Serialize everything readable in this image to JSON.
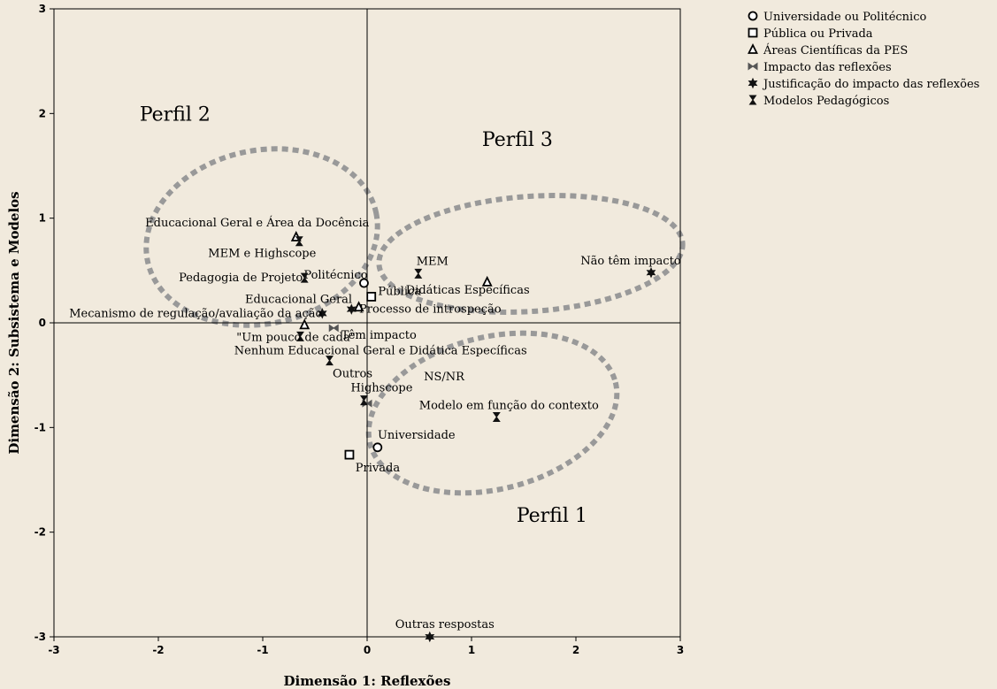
{
  "chart_data": {
    "type": "scatter",
    "xlabel": "Dimensão 1: Reflexões",
    "ylabel": "Dimensão 2: Subsistema e Modelos",
    "xlim": [
      -3,
      3
    ],
    "ylim": [
      -3,
      3
    ],
    "xticks": [
      "-3",
      "-2",
      "-1",
      "0",
      "1",
      "2",
      "3"
    ],
    "yticks": [
      "-3",
      "-2",
      "-1",
      "0",
      "1",
      "2",
      "3"
    ],
    "reference_lines": {
      "x": 0,
      "y": 0
    },
    "legend_position": "top-right",
    "series": [
      {
        "name": "Universidade ou Politécnico",
        "marker": "circle",
        "points": [
          {
            "label": "Politécnico",
            "x": -0.03,
            "y": 0.38
          },
          {
            "label": "Universidade",
            "x": 0.1,
            "y": -1.19
          }
        ]
      },
      {
        "name": "Pública ou Privada",
        "marker": "square",
        "points": [
          {
            "label": "Pública",
            "x": 0.04,
            "y": 0.25
          },
          {
            "label": "Privada",
            "x": -0.17,
            "y": -1.26
          }
        ]
      },
      {
        "name": "Áreas Científicas da PES",
        "marker": "triangle",
        "points": [
          {
            "label": "Educacional Geral e Área da Docência",
            "x": -0.68,
            "y": 0.82
          },
          {
            "label": "Educacional Geral",
            "x": -0.08,
            "y": 0.15
          },
          {
            "label": "Didáticas Específicas",
            "x": 1.15,
            "y": 0.39
          },
          {
            "label": "Nenhum Educacional Geral e Didática Específicas",
            "x": -0.6,
            "y": -0.02
          }
        ]
      },
      {
        "name": "Impacto das reflexões",
        "marker": "bowtie",
        "points": [
          {
            "label": "Têm impacto",
            "x": -0.32,
            "y": -0.05
          },
          {
            "label": "NS/NR",
            "x": 0.0,
            "y": -0.77
          }
        ]
      },
      {
        "name": "Justificação do impacto das reflexões",
        "marker": "star",
        "points": [
          {
            "label": "Não têm impacto",
            "x": 2.72,
            "y": 0.48
          },
          {
            "label": "Mecanismo de regulação/avaliação da ação",
            "x": -0.43,
            "y": 0.09
          },
          {
            "label": "Processo de introspeção",
            "x": -0.15,
            "y": 0.13
          },
          {
            "label": "Outras respostas",
            "x": 0.6,
            "y": -3.0
          }
        ]
      },
      {
        "name": "Modelos Pedagógicos",
        "marker": "hourglass",
        "points": [
          {
            "label": "MEM e Highscope",
            "x": -0.65,
            "y": 0.78
          },
          {
            "label": "Pedagogia de Projeto",
            "x": -0.6,
            "y": 0.43
          },
          {
            "label": "MEM",
            "x": 0.49,
            "y": 0.47
          },
          {
            "label": "Outros",
            "x": -0.36,
            "y": -0.36
          },
          {
            "label": "Highscope",
            "x": -0.03,
            "y": -0.74
          },
          {
            "label": "\"Um pouco de cada\"",
            "x": -0.64,
            "y": -0.13
          },
          {
            "label": "Modelo em função do contexto",
            "x": 1.24,
            "y": -0.9
          }
        ]
      }
    ],
    "annotations": [
      {
        "text": "Perfil 1",
        "x": 1.77,
        "y": -1.9
      },
      {
        "text": "Perfil 2",
        "x": -1.84,
        "y": 1.93
      },
      {
        "text": "Perfil 3",
        "x": 1.44,
        "y": 1.69
      }
    ]
  }
}
